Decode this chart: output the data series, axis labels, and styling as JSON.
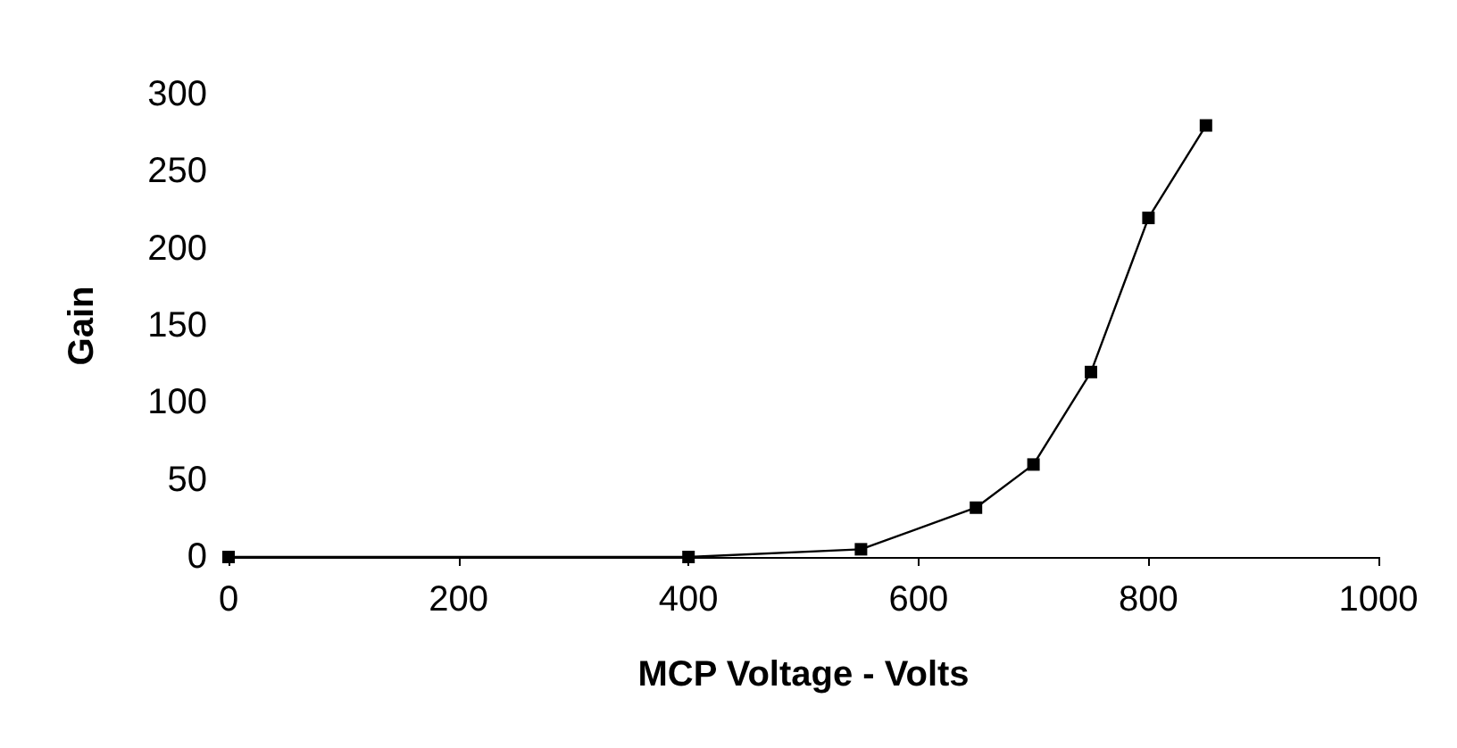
{
  "chart_data": {
    "type": "line",
    "xlabel": "MCP Voltage - Volts",
    "ylabel": "Gain",
    "x": [
      0,
      400,
      550,
      650,
      700,
      750,
      800,
      850
    ],
    "series": [
      {
        "color": "#000000",
        "values": [
          0,
          0,
          5,
          32,
          60,
          120,
          220,
          280
        ]
      }
    ],
    "xlim": [
      0,
      1000
    ],
    "xticks": [
      0,
      200,
      400,
      600,
      800,
      1000
    ],
    "ylim": [
      0,
      300
    ],
    "yticks": [
      0,
      50,
      100,
      150,
      200,
      250,
      300
    ],
    "grid": false,
    "marker": "square",
    "line_style": "solid"
  }
}
